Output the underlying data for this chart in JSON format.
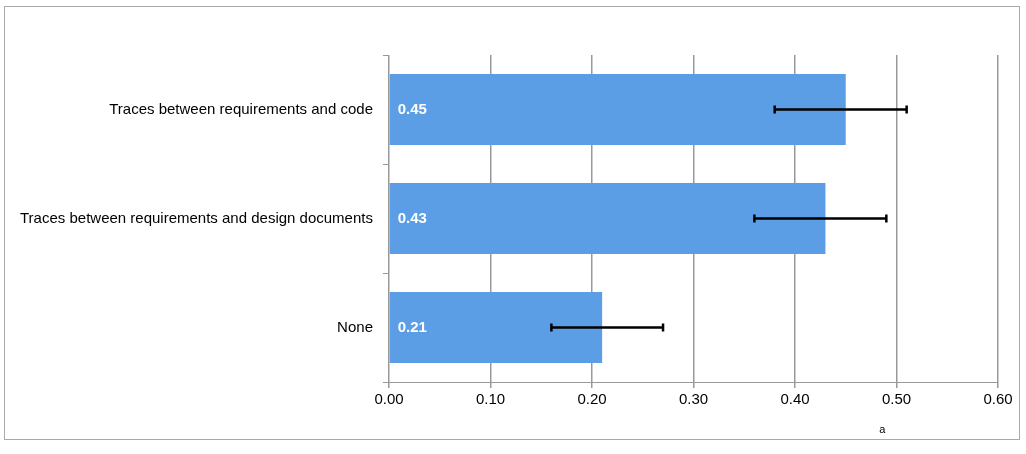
{
  "chart_data": {
    "type": "bar",
    "orientation": "horizontal",
    "categories": [
      "Traces between requirements and code",
      "Traces between requirements and design documents",
      "None"
    ],
    "values": [
      0.45,
      0.43,
      0.21
    ],
    "errors": [
      [
        0.38,
        0.51
      ],
      [
        0.36,
        0.49
      ],
      [
        0.16,
        0.27
      ]
    ],
    "color": "#5b9ee6",
    "xlim": [
      0,
      0.6
    ],
    "xticks": [
      {
        "value": 0,
        "label": "0.00"
      },
      {
        "value": 0.1,
        "label": "0.10"
      },
      {
        "value": 0.2,
        "label": "0.20"
      },
      {
        "value": 0.3,
        "label": "0.30"
      },
      {
        "value": 0.4,
        "label": "0.40"
      },
      {
        "value": 0.5,
        "label": "0.50"
      },
      {
        "value": 0.6,
        "label": "0.60"
      }
    ],
    "grid": "x",
    "legend": false,
    "data_labels": true,
    "annotations": [
      "a"
    ]
  }
}
